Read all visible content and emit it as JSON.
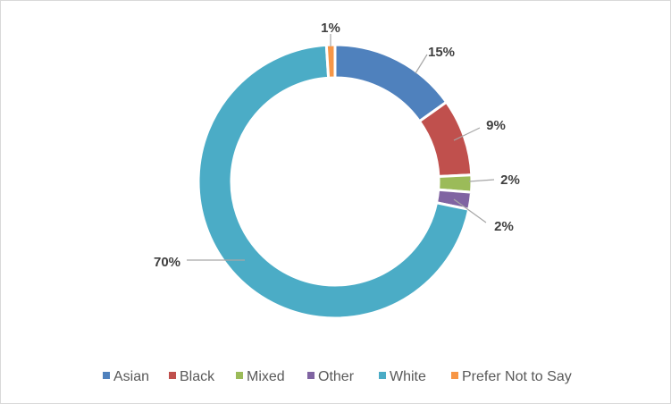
{
  "chart_data": {
    "type": "pie",
    "variant": "doughnut",
    "title": "",
    "legend_position": "bottom",
    "data_label_format": "percent",
    "categories": [
      "Asian",
      "Black",
      "Mixed",
      "Other",
      "White",
      "Prefer Not to Say"
    ],
    "values": [
      15,
      9,
      2,
      2,
      70,
      1
    ],
    "labels": [
      "15%",
      "9%",
      "2%",
      "2%",
      "70%",
      "1%"
    ],
    "colors": [
      "#4f81bd",
      "#c0504d",
      "#9bbb59",
      "#8064a2",
      "#4bacc6",
      "#f79646"
    ]
  }
}
